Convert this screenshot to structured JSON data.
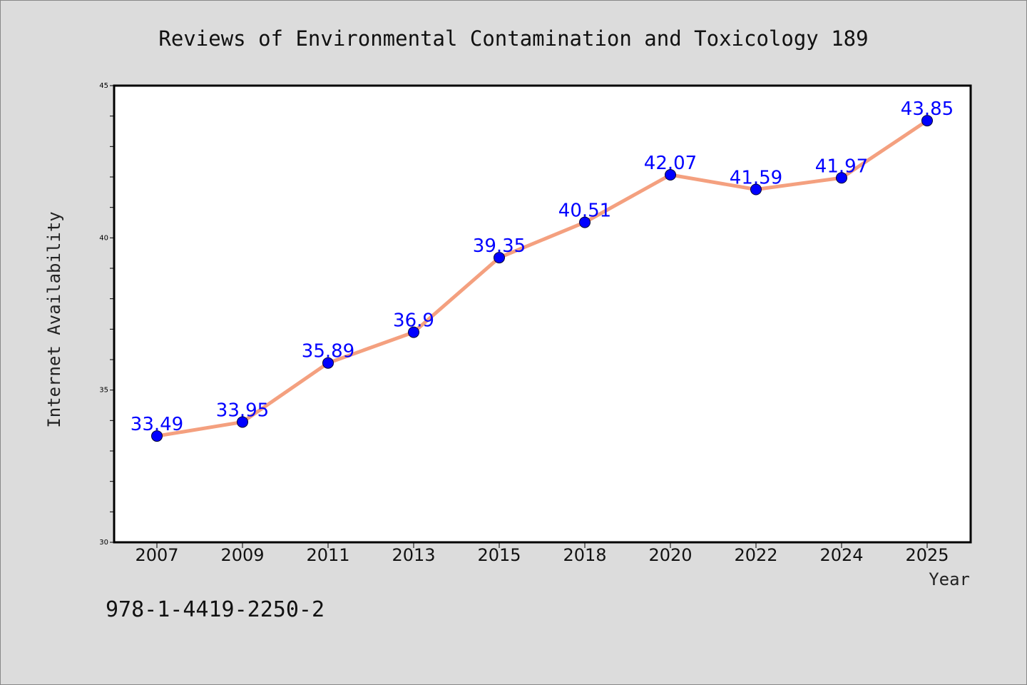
{
  "chart_data": {
    "type": "line",
    "title": "Reviews of Environmental Contamination and Toxicology 189",
    "xlabel": "Year",
    "ylabel": "Internet Availability",
    "categories": [
      "2007",
      "2009",
      "2011",
      "2013",
      "2015",
      "2018",
      "2020",
      "2022",
      "2024",
      "2025"
    ],
    "values": [
      33.49,
      33.95,
      35.89,
      36.9,
      39.35,
      40.51,
      42.07,
      41.59,
      41.97,
      43.85
    ],
    "value_labels": [
      "33.49",
      "33.95",
      "35.89",
      "36.9",
      "39.35",
      "40.51",
      "42.07",
      "41.59",
      "41.97",
      "43.85"
    ],
    "ylim": [
      30,
      45
    ],
    "y_ticks": [
      30,
      35,
      40,
      45
    ],
    "grid": false,
    "line_color": "#f4a07f",
    "marker_color": "#0000ff",
    "label_color": "#0000ff"
  },
  "footnote": "978-1-4419-2250-2"
}
